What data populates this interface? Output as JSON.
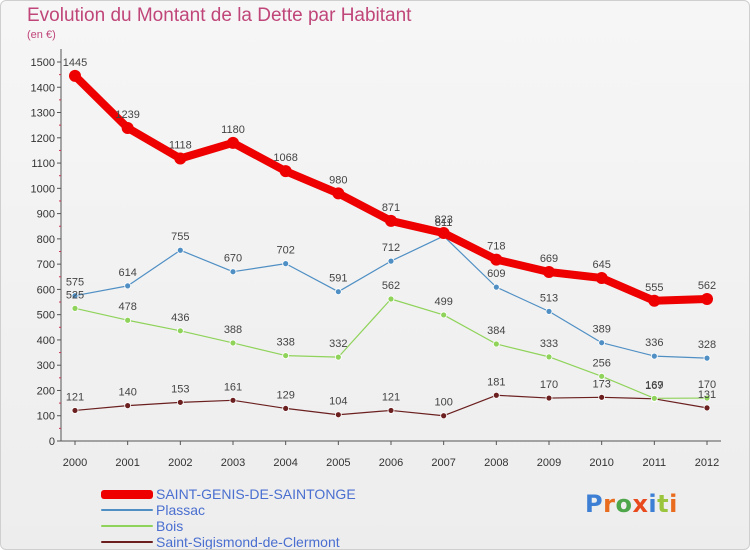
{
  "header": {
    "title": "Evolution du Montant de la Dette par Habitant",
    "unit": "(en €)"
  },
  "brand": {
    "logo_text": "Proxiti",
    "letter_colors": [
      "#3d7fd4",
      "#e86b1e",
      "#4ea64a",
      "#e84a1e",
      "#3d7fd4",
      "#9bc53d",
      "#e86b1e"
    ]
  },
  "chart_data": {
    "type": "line",
    "x": [
      "2000",
      "2001",
      "2002",
      "2003",
      "2004",
      "2005",
      "2006",
      "2007",
      "2008",
      "2009",
      "2010",
      "2011",
      "2012"
    ],
    "ylim": [
      0,
      1500
    ],
    "yticks": [
      0,
      100,
      200,
      300,
      400,
      500,
      600,
      700,
      800,
      900,
      1000,
      1100,
      1200,
      1300,
      1400,
      1500
    ],
    "grid": false,
    "legend_position": "bottom",
    "series": [
      {
        "name": "Saint-Sigismond-de-Clermont",
        "color": "#6b1f1f",
        "width": 1.2,
        "values": [
          121,
          140,
          153,
          161,
          129,
          104,
          121,
          100,
          181,
          170,
          173,
          167,
          131
        ],
        "labels": [
          "121",
          "140",
          "153",
          "161",
          "129",
          "104",
          "121",
          "100",
          "181",
          "170",
          "173",
          "167",
          "131"
        ]
      },
      {
        "name": "Bois",
        "color": "#8fd35a",
        "width": 1.2,
        "values": [
          525,
          478,
          436,
          388,
          338,
          332,
          562,
          499,
          384,
          333,
          256,
          169,
          170
        ],
        "labels": [
          "525",
          "478",
          "436",
          "388",
          "338",
          "332",
          "562",
          "499",
          "384",
          "333",
          "256",
          "169",
          "170"
        ]
      },
      {
        "name": "Plassac",
        "color": "#4f8fc4",
        "width": 1.2,
        "values": [
          575,
          614,
          755,
          670,
          702,
          591,
          712,
          811,
          609,
          513,
          389,
          336,
          328
        ],
        "labels": [
          "575",
          "614",
          "755",
          "670",
          "702",
          "591",
          "712",
          "811",
          "609",
          "513",
          "389",
          "336",
          "328"
        ]
      },
      {
        "name": "SAINT-GENIS-DE-SAINTONGE",
        "color": "#ee0000",
        "width": 8,
        "values": [
          1445,
          1239,
          1118,
          1180,
          1068,
          980,
          871,
          823,
          718,
          669,
          645,
          555,
          562
        ],
        "labels": [
          "1445",
          "1239",
          "1118",
          "1180",
          "1068",
          "980",
          "871",
          "823",
          "718",
          "669",
          "645",
          "555",
          "562"
        ]
      }
    ],
    "legend": [
      {
        "name": "SAINT-GENIS-DE-SAINTONGE",
        "color": "#ee0000",
        "thickness": 9
      },
      {
        "name": "Plassac",
        "color": "#4f8fc4",
        "thickness": 2
      },
      {
        "name": "Bois",
        "color": "#8fd35a",
        "thickness": 2
      },
      {
        "name": "Saint-Sigismond-de-Clermont",
        "color": "#6b1f1f",
        "thickness": 2
      }
    ]
  }
}
